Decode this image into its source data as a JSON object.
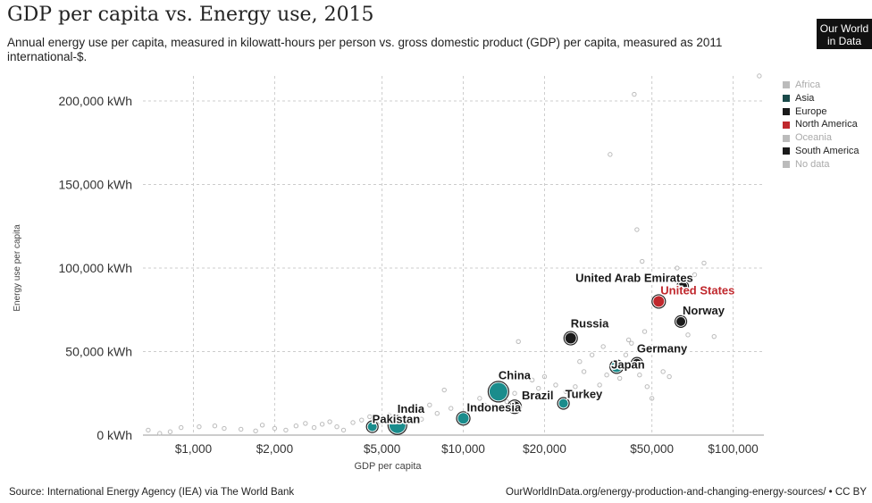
{
  "header": {
    "title": "GDP per capita vs. Energy use, 2015",
    "subtitle": "Annual energy use per capita, measured in kilowatt-hours per person vs. gross domestic product (GDP) per capita, measured as 2011 international-$.",
    "logo_line1": "Our World",
    "logo_line2": "in Data"
  },
  "footer": {
    "source": "Source: International Energy Agency (IEA) via The World Bank",
    "url": "OurWorldInData.org/energy-production-and-changing-energy-sources/ • CC BY"
  },
  "colors": {
    "highlight_asia": "#1a8c8c",
    "highlight_dark": "#1a1a1a",
    "highlight_us": "#c0282d",
    "faded": "#bbbbbb",
    "grid": "#cccccc"
  },
  "chart_data": {
    "type": "scatter",
    "title": "GDP per capita vs. Energy use, 2015",
    "xlabel": "GDP per capita",
    "ylabel": "Energy use per capita",
    "x_scale": "log",
    "xlim": [
      650,
      130000
    ],
    "ylim": [
      0,
      215000
    ],
    "x_ticks": [
      {
        "value": 1000,
        "label": "$1,000"
      },
      {
        "value": 2000,
        "label": "$2,000"
      },
      {
        "value": 5000,
        "label": "$5,000"
      },
      {
        "value": 10000,
        "label": "$10,000"
      },
      {
        "value": 20000,
        "label": "$20,000"
      },
      {
        "value": 50000,
        "label": "$50,000"
      },
      {
        "value": 100000,
        "label": "$100,000"
      }
    ],
    "y_ticks": [
      {
        "value": 0,
        "label": "0 kWh"
      },
      {
        "value": 50000,
        "label": "50,000 kWh"
      },
      {
        "value": 100000,
        "label": "100,000 kWh"
      },
      {
        "value": 150000,
        "label": "150,000 kWh"
      },
      {
        "value": 200000,
        "label": "200,000 kWh"
      }
    ],
    "grid": true,
    "legend_position": "right",
    "legend": [
      {
        "name": "Africa",
        "color": "#bbbbbb",
        "faded": true
      },
      {
        "name": "Asia",
        "color": "#1a4a4a",
        "faded": false
      },
      {
        "name": "Europe",
        "color": "#1a1a1a",
        "faded": false
      },
      {
        "name": "North America",
        "color": "#c0282d",
        "faded": false
      },
      {
        "name": "Oceania",
        "color": "#bbbbbb",
        "faded": true
      },
      {
        "name": "South America",
        "color": "#1a1a1a",
        "faded": false
      },
      {
        "name": "No data",
        "color": "#bbbbbb",
        "faded": true
      }
    ],
    "labeled_points": [
      {
        "label": "United Arab Emirates",
        "x": 65000,
        "y": 89000,
        "size": 5,
        "color": "#1a1a1a",
        "label_color": "#1a1a1a"
      },
      {
        "label": "United States",
        "x": 53000,
        "y": 80000,
        "size": 6,
        "color": "#c0282d",
        "label_color": "#c0282d"
      },
      {
        "label": "Norway",
        "x": 64000,
        "y": 68000,
        "size": 5,
        "color": "#1a1a1a",
        "label_color": "#1a1a1a"
      },
      {
        "label": "Russia",
        "x": 25000,
        "y": 58000,
        "size": 6,
        "color": "#1a1a1a",
        "label_color": "#1a1a1a"
      },
      {
        "label": "Germany",
        "x": 44000,
        "y": 43000,
        "size": 5,
        "color": "#1a1a1a",
        "label_color": "#1a1a1a"
      },
      {
        "label": "Japan",
        "x": 37000,
        "y": 41000,
        "size": 6,
        "color": "#1a8c8c",
        "label_color": "#1a1a1a"
      },
      {
        "label": "China",
        "x": 13500,
        "y": 26000,
        "size": 10,
        "color": "#1a8c8c",
        "label_color": "#1a1a1a"
      },
      {
        "label": "Turkey",
        "x": 23500,
        "y": 19000,
        "size": 5,
        "color": "#1a8c8c",
        "label_color": "#1a1a1a"
      },
      {
        "label": "Brazil",
        "x": 15500,
        "y": 17000,
        "size": 6,
        "color": "#1a1a1a",
        "label_color": "#1a1a1a"
      },
      {
        "label": "Indonesia",
        "x": 10000,
        "y": 10000,
        "size": 6,
        "color": "#1a8c8c",
        "label_color": "#1a1a1a"
      },
      {
        "label": "India",
        "x": 5700,
        "y": 6000,
        "size": 9,
        "color": "#1a8c8c",
        "label_color": "#1a1a1a"
      },
      {
        "label": "Pakistan",
        "x": 4600,
        "y": 5000,
        "size": 5,
        "color": "#1a8c8c",
        "label_color": "#1a1a1a"
      }
    ],
    "background_points": [
      {
        "x": 680,
        "y": 3000
      },
      {
        "x": 750,
        "y": 1000
      },
      {
        "x": 820,
        "y": 2000
      },
      {
        "x": 900,
        "y": 4500
      },
      {
        "x": 1050,
        "y": 5000
      },
      {
        "x": 1200,
        "y": 5500
      },
      {
        "x": 1300,
        "y": 4000
      },
      {
        "x": 1500,
        "y": 3500
      },
      {
        "x": 1700,
        "y": 2500
      },
      {
        "x": 1800,
        "y": 6000
      },
      {
        "x": 2000,
        "y": 4000
      },
      {
        "x": 2200,
        "y": 3000
      },
      {
        "x": 2400,
        "y": 5500
      },
      {
        "x": 2600,
        "y": 7000
      },
      {
        "x": 2800,
        "y": 4500
      },
      {
        "x": 3000,
        "y": 6500
      },
      {
        "x": 3200,
        "y": 8000
      },
      {
        "x": 3400,
        "y": 5000
      },
      {
        "x": 3600,
        "y": 3000
      },
      {
        "x": 3900,
        "y": 7500
      },
      {
        "x": 4200,
        "y": 9000
      },
      {
        "x": 4500,
        "y": 11000
      },
      {
        "x": 4900,
        "y": 8000
      },
      {
        "x": 5300,
        "y": 12000
      },
      {
        "x": 6000,
        "y": 10000
      },
      {
        "x": 6500,
        "y": 14000
      },
      {
        "x": 7000,
        "y": 9500
      },
      {
        "x": 7500,
        "y": 18000
      },
      {
        "x": 8000,
        "y": 13000
      },
      {
        "x": 8500,
        "y": 27000
      },
      {
        "x": 9000,
        "y": 16000
      },
      {
        "x": 11000,
        "y": 15000
      },
      {
        "x": 11500,
        "y": 22000
      },
      {
        "x": 12000,
        "y": 18000
      },
      {
        "x": 14500,
        "y": 20000
      },
      {
        "x": 15500,
        "y": 25000
      },
      {
        "x": 16000,
        "y": 56000
      },
      {
        "x": 17000,
        "y": 22000
      },
      {
        "x": 18000,
        "y": 33000
      },
      {
        "x": 19000,
        "y": 28000
      },
      {
        "x": 20000,
        "y": 35000
      },
      {
        "x": 21000,
        "y": 24000
      },
      {
        "x": 22000,
        "y": 30000
      },
      {
        "x": 24000,
        "y": 26000
      },
      {
        "x": 26000,
        "y": 29000
      },
      {
        "x": 27000,
        "y": 44000
      },
      {
        "x": 28000,
        "y": 38000
      },
      {
        "x": 30000,
        "y": 48000
      },
      {
        "x": 32000,
        "y": 30000
      },
      {
        "x": 33000,
        "y": 53000
      },
      {
        "x": 34000,
        "y": 36000
      },
      {
        "x": 35000,
        "y": 168000
      },
      {
        "x": 38000,
        "y": 34000
      },
      {
        "x": 40000,
        "y": 48000
      },
      {
        "x": 41000,
        "y": 57000
      },
      {
        "x": 42000,
        "y": 55000
      },
      {
        "x": 43000,
        "y": 204000
      },
      {
        "x": 44000,
        "y": 123000
      },
      {
        "x": 45000,
        "y": 36000
      },
      {
        "x": 46000,
        "y": 104000
      },
      {
        "x": 47000,
        "y": 62000
      },
      {
        "x": 48000,
        "y": 29000
      },
      {
        "x": 50000,
        "y": 22000
      },
      {
        "x": 55000,
        "y": 38000
      },
      {
        "x": 58000,
        "y": 35000
      },
      {
        "x": 62000,
        "y": 100000
      },
      {
        "x": 68000,
        "y": 60000
      },
      {
        "x": 72000,
        "y": 96000
      },
      {
        "x": 78000,
        "y": 103000
      },
      {
        "x": 85000,
        "y": 59000
      },
      {
        "x": 90000,
        "y": 74000
      },
      {
        "x": 125000,
        "y": 215000
      }
    ]
  }
}
